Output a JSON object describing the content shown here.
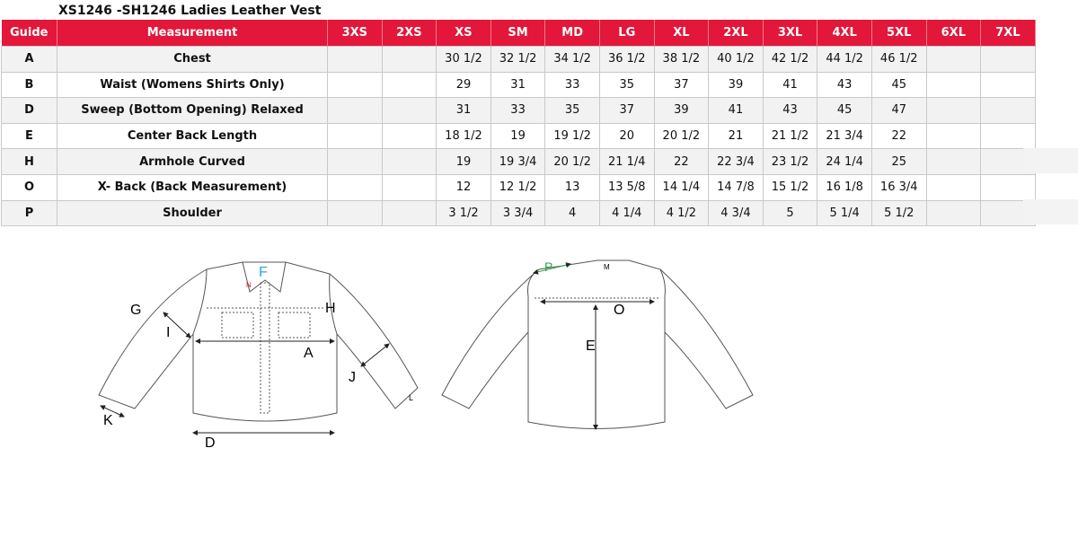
{
  "title": "XS1246 -SH1246 Ladies Leather Vest",
  "colors": {
    "header_bg": "#e3173a",
    "header_text": "#ffffff",
    "row_alt": "#f2f2f2",
    "label_F": "#29a9d6",
    "label_N": "#e3173a",
    "label_P": "#2aa84a"
  },
  "table": {
    "headers": [
      "Guide",
      "Measurement",
      "3XS",
      "2XS",
      "XS",
      "SM",
      "MD",
      "LG",
      "XL",
      "2XL",
      "3XL",
      "4XL",
      "5XL",
      "6XL",
      "7XL"
    ],
    "rows": [
      {
        "guide": "A",
        "measurement": "Chest",
        "values": [
          "",
          "",
          "30 1/2",
          "32 1/2",
          "34 1/2",
          "36 1/2",
          "38 1/2",
          "40 1/2",
          "42 1/2",
          "44 1/2",
          "46 1/2",
          "",
          ""
        ]
      },
      {
        "guide": "B",
        "measurement": "Waist (Womens Shirts Only)",
        "values": [
          "",
          "",
          "29",
          "31",
          "33",
          "35",
          "37",
          "39",
          "41",
          "43",
          "45",
          "",
          ""
        ]
      },
      {
        "guide": "D",
        "measurement": "Sweep (Bottom Opening)  Relaxed",
        "values": [
          "",
          "",
          "31",
          "33",
          "35",
          "37",
          "39",
          "41",
          "43",
          "45",
          "47",
          "",
          ""
        ]
      },
      {
        "guide": "E",
        "measurement": "Center Back Length",
        "values": [
          "",
          "",
          "18 1/2",
          "19",
          "19 1/2",
          "20",
          "20 1/2",
          "21",
          "21 1/2",
          "21 3/4",
          "22",
          "",
          ""
        ]
      },
      {
        "guide": "H",
        "measurement": "Armhole Curved",
        "values": [
          "",
          "",
          "19",
          "19 3/4",
          "20 1/2",
          "21 1/4",
          "22",
          "22 3/4",
          "23 1/2",
          "24 1/4",
          "25",
          "",
          ""
        ]
      },
      {
        "guide": "O",
        "measurement": "X- Back (Back Measurement)",
        "values": [
          "",
          "",
          "12",
          "12 1/2",
          "13",
          "13 5/8",
          "14 1/4",
          "14 7/8",
          "15 1/2",
          "16 1/8",
          "16 3/4",
          "",
          ""
        ]
      },
      {
        "guide": "P",
        "measurement": "Shoulder",
        "values": [
          "",
          "",
          "3 1/2",
          "3 3/4",
          "4",
          "4 1/4",
          "4 1/2",
          "4 3/4",
          "5",
          "5 1/4",
          "5 1/2",
          "",
          ""
        ]
      }
    ]
  },
  "diagram": {
    "front_labels": {
      "F": "F",
      "N": "N",
      "G": "G",
      "H": "H",
      "I": "I",
      "A": "A",
      "J": "J",
      "K": "K",
      "L": "L",
      "D": "D"
    },
    "back_labels": {
      "P": "P",
      "M": "M",
      "O": "O",
      "E": "E"
    }
  }
}
